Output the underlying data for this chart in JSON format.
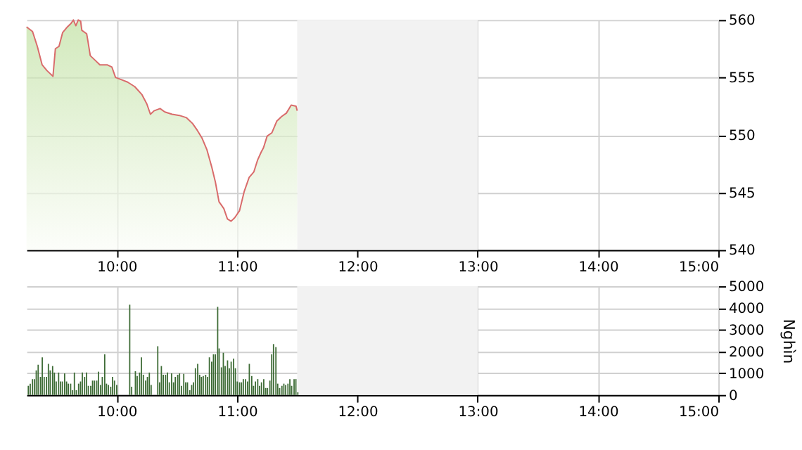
{
  "chart_data": [
    {
      "type": "area",
      "x": [
        9.25,
        9.3,
        9.34,
        9.38,
        9.42,
        9.47,
        9.49,
        9.52,
        9.55,
        9.59,
        9.62,
        9.64,
        9.66,
        9.68,
        9.7,
        9.71,
        9.75,
        9.76,
        9.78,
        9.82,
        9.86,
        9.92,
        9.96,
        9.99,
        10.04,
        10.09,
        10.15,
        10.21,
        10.25,
        10.28,
        10.31,
        10.36,
        10.4,
        10.46,
        10.52,
        10.58,
        10.63,
        10.67,
        10.71,
        10.75,
        10.79,
        10.82,
        10.85,
        10.89,
        10.92,
        10.95,
        10.98,
        11.02,
        11.06,
        11.1,
        11.14,
        11.17,
        11.2,
        11.22,
        11.25,
        11.29,
        11.33,
        11.37,
        11.41,
        11.45,
        11.49,
        11.5
      ],
      "series": [
        {
          "color": "#d96b6b",
          "values": [
            559.4,
            559.0,
            557.7,
            556.1,
            555.6,
            555.1,
            557.5,
            557.7,
            558.9,
            559.4,
            559.7,
            560.0,
            559.5,
            560.0,
            559.9,
            559.1,
            558.8,
            558.2,
            556.9,
            556.5,
            556.1,
            556.1,
            555.9,
            555.0,
            554.8,
            554.6,
            554.2,
            553.5,
            552.7,
            551.8,
            552.1,
            552.3,
            552.0,
            551.8,
            551.7,
            551.5,
            551.0,
            550.4,
            549.7,
            548.7,
            547.2,
            545.9,
            544.2,
            543.6,
            542.7,
            542.5,
            542.8,
            543.4,
            545.1,
            546.3,
            546.8,
            547.8,
            548.5,
            548.9,
            549.9,
            550.2,
            551.2,
            551.6,
            551.9,
            552.6,
            552.5,
            552.1
          ]
        }
      ],
      "xlim": [
        9.25,
        15
      ],
      "xticks": [
        {
          "value": 10,
          "label": "10:00"
        },
        {
          "value": 11,
          "label": "11:00"
        },
        {
          "value": 12,
          "label": "12:00"
        },
        {
          "value": 13,
          "label": "13:00"
        },
        {
          "value": 14,
          "label": "14:00"
        },
        {
          "value": 15,
          "label": "15:00"
        }
      ],
      "ylim": [
        540,
        560
      ],
      "yticks": [
        540,
        545,
        550,
        555,
        560
      ],
      "grid": true,
      "bands": [
        {
          "axis": "x",
          "from": 11.5,
          "to": 13,
          "color": "#f2f2f2"
        }
      ]
    },
    {
      "type": "bar",
      "x": [
        9.265,
        9.281,
        9.3,
        9.316,
        9.331,
        9.347,
        9.366,
        9.381,
        9.397,
        9.416,
        9.432,
        9.447,
        9.467,
        9.482,
        9.497,
        9.517,
        9.532,
        9.548,
        9.567,
        9.583,
        9.598,
        9.617,
        9.633,
        9.648,
        9.664,
        9.683,
        9.699,
        9.714,
        9.733,
        9.749,
        9.764,
        9.784,
        9.799,
        9.815,
        9.834,
        9.849,
        9.865,
        9.88,
        9.9,
        9.915,
        9.931,
        9.95,
        9.965,
        9.981,
        10.0,
        10.108,
        10.124,
        10.155,
        10.17,
        10.19,
        10.205,
        10.221,
        10.24,
        10.255,
        10.271,
        10.286,
        10.341,
        10.356,
        10.371,
        10.387,
        10.406,
        10.422,
        10.437,
        10.456,
        10.472,
        10.487,
        10.507,
        10.522,
        10.538,
        10.557,
        10.573,
        10.588,
        10.607,
        10.623,
        10.638,
        10.654,
        10.673,
        10.689,
        10.704,
        10.719,
        10.739,
        10.754,
        10.77,
        10.789,
        10.804,
        10.82,
        10.839,
        10.851,
        10.87,
        10.886,
        10.901,
        10.921,
        10.936,
        10.951,
        10.971,
        10.986,
        11.002,
        11.021,
        11.037,
        11.052,
        11.071,
        11.087,
        11.102,
        11.122,
        11.137,
        11.153,
        11.172,
        11.187,
        11.203,
        11.222,
        11.238,
        11.253,
        11.273,
        11.288,
        11.303,
        11.323,
        11.338,
        11.354,
        11.373,
        11.389,
        11.404,
        11.423,
        11.439,
        11.454,
        11.474,
        11.489,
        11.505
      ],
      "series": [
        {
          "color": "#3d6b35",
          "values": [
            420,
            520,
            730,
            730,
            1130,
            1390,
            830,
            1730,
            830,
            830,
            1430,
            1130,
            1330,
            1030,
            620,
            1030,
            620,
            620,
            990,
            620,
            520,
            520,
            220,
            1030,
            220,
            520,
            620,
            1030,
            830,
            1030,
            420,
            420,
            660,
            660,
            660,
            1070,
            460,
            830,
            1870,
            520,
            460,
            380,
            830,
            660,
            460,
            4150,
            380,
            1090,
            870,
            1030,
            1730,
            930,
            660,
            830,
            1030,
            460,
            2240,
            580,
            1330,
            930,
            930,
            1030,
            580,
            990,
            580,
            830,
            930,
            990,
            420,
            970,
            580,
            580,
            220,
            460,
            580,
            1230,
            1430,
            930,
            830,
            870,
            930,
            830,
            1730,
            1530,
            1870,
            1870,
            4050,
            2140,
            1270,
            1940,
            1330,
            1590,
            1230,
            1530,
            1670,
            1230,
            620,
            580,
            580,
            730,
            730,
            620,
            1430,
            870,
            420,
            620,
            730,
            420,
            580,
            730,
            320,
            320,
            660,
            1870,
            2340,
            2200,
            520,
            320,
            420,
            520,
            460,
            520,
            730,
            420,
            730,
            730,
            120
          ]
        }
      ],
      "xlim": [
        9.25,
        15
      ],
      "xticks": [
        {
          "value": 10,
          "label": "10:00"
        },
        {
          "value": 11,
          "label": "11:00"
        },
        {
          "value": 12,
          "label": "12:00"
        },
        {
          "value": 13,
          "label": "13:00"
        },
        {
          "value": 14,
          "label": "14:00"
        },
        {
          "value": 15,
          "label": "15:00"
        }
      ],
      "ylim": [
        0,
        5000
      ],
      "yticks": [
        0,
        1000,
        2000,
        3000,
        4000,
        5000
      ],
      "ylabel": "Nghìn",
      "grid": true,
      "bands": [
        {
          "axis": "x",
          "from": 11.5,
          "to": 13,
          "color": "#f2f2f2"
        }
      ]
    }
  ]
}
